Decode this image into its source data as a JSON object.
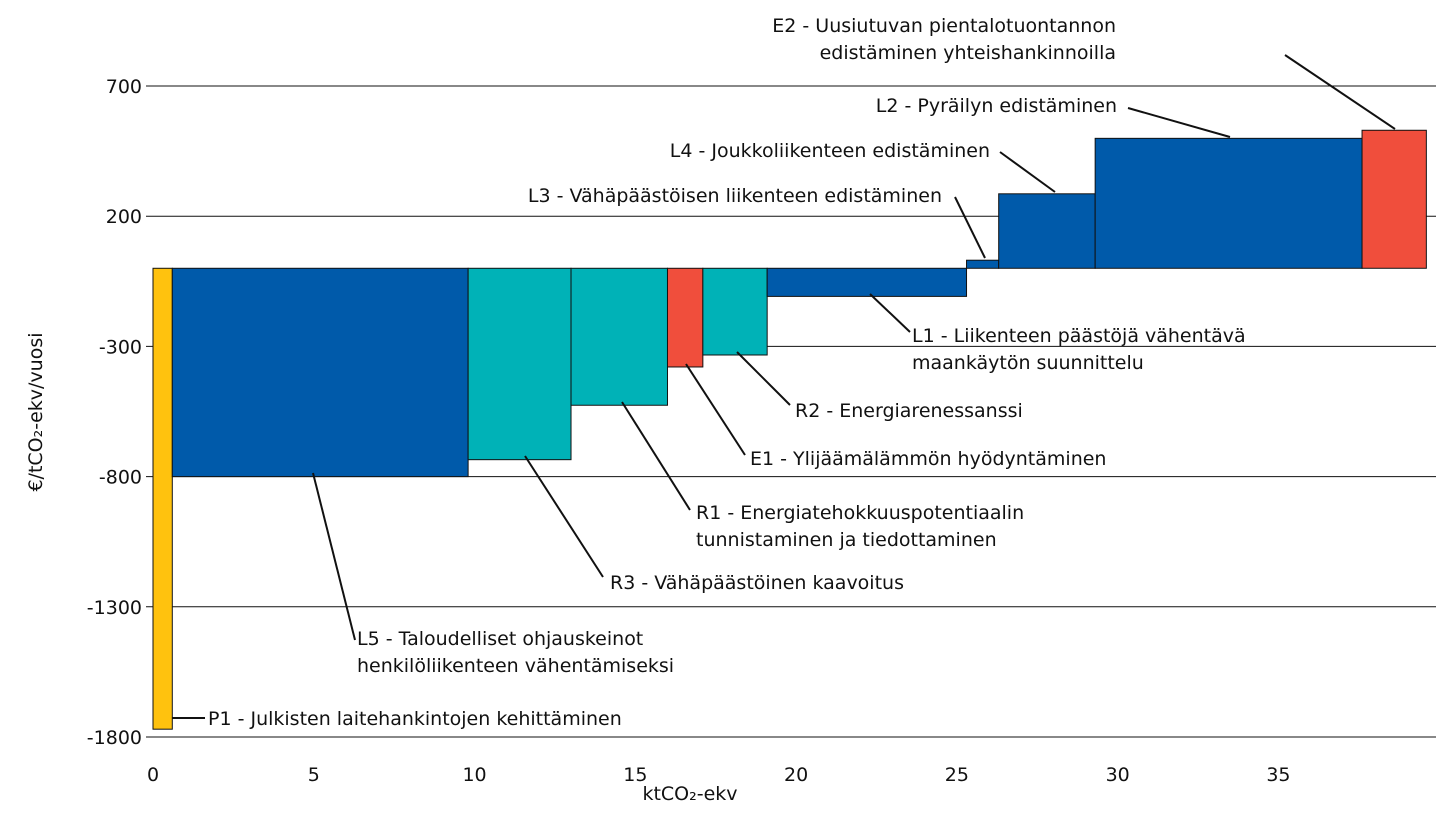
{
  "chart_data": {
    "type": "macc",
    "xlabel": "ktCO₂-ekv",
    "ylabel": "€/tCO₂-ekv/vuosi",
    "categories": [
      [
        "P1 - Julkisten laitehankintojen kehittäminen"
      ],
      [
        "L5 - Taloudelliset ohjauskeinot",
        "henkilöliikenteen vähentämiseksi"
      ],
      [
        "R3 - Vähäpäästöinen kaavoitus"
      ],
      [
        "R1 - Energiatehokkuuspotentiaalin",
        "tunnistaminen ja tiedottaminen"
      ],
      [
        "E1 - Ylijäämälämmön hyödyntäminen"
      ],
      [
        "R2 - Energiarenessanssi"
      ],
      [
        "L1 - Liikenteen päästöjä vähentävä",
        "maankäytön suunnittelu"
      ],
      [
        "L3 - Vähäpäästöisen liikenteen edistäminen"
      ],
      [
        "L4 - Joukkoliikenteen edistäminen"
      ],
      [
        "L2 - Pyräilyn edistäminen"
      ],
      [
        "E2 - Uusiutuvan pientalotuontannon",
        "edistäminen yhteishankinnoilla"
      ]
    ],
    "widths": [
      0.6,
      9.2,
      3.2,
      3.0,
      1.1,
      2.0,
      6.2,
      1.0,
      3.0,
      8.3,
      2.0
    ],
    "values": [
      -1770,
      -800,
      -735,
      -526,
      -379,
      -333,
      -108,
      31,
      286,
      499,
      530
    ],
    "colors": [
      "#ffc20e",
      "#005aaa",
      "#00b2b7",
      "#00b2b7",
      "#f04e3c",
      "#00b2b7",
      "#005aaa",
      "#005aaa",
      "#005aaa",
      "#005aaa",
      "#f04e3c"
    ],
    "xlim": [
      0,
      39.9
    ],
    "xticks": [
      0,
      5,
      10,
      15,
      20,
      25,
      30,
      35
    ],
    "ylim": [
      -1800,
      700
    ],
    "yticks": [
      700,
      200,
      -300,
      -800,
      -1300,
      -1800
    ],
    "grid": true
  }
}
